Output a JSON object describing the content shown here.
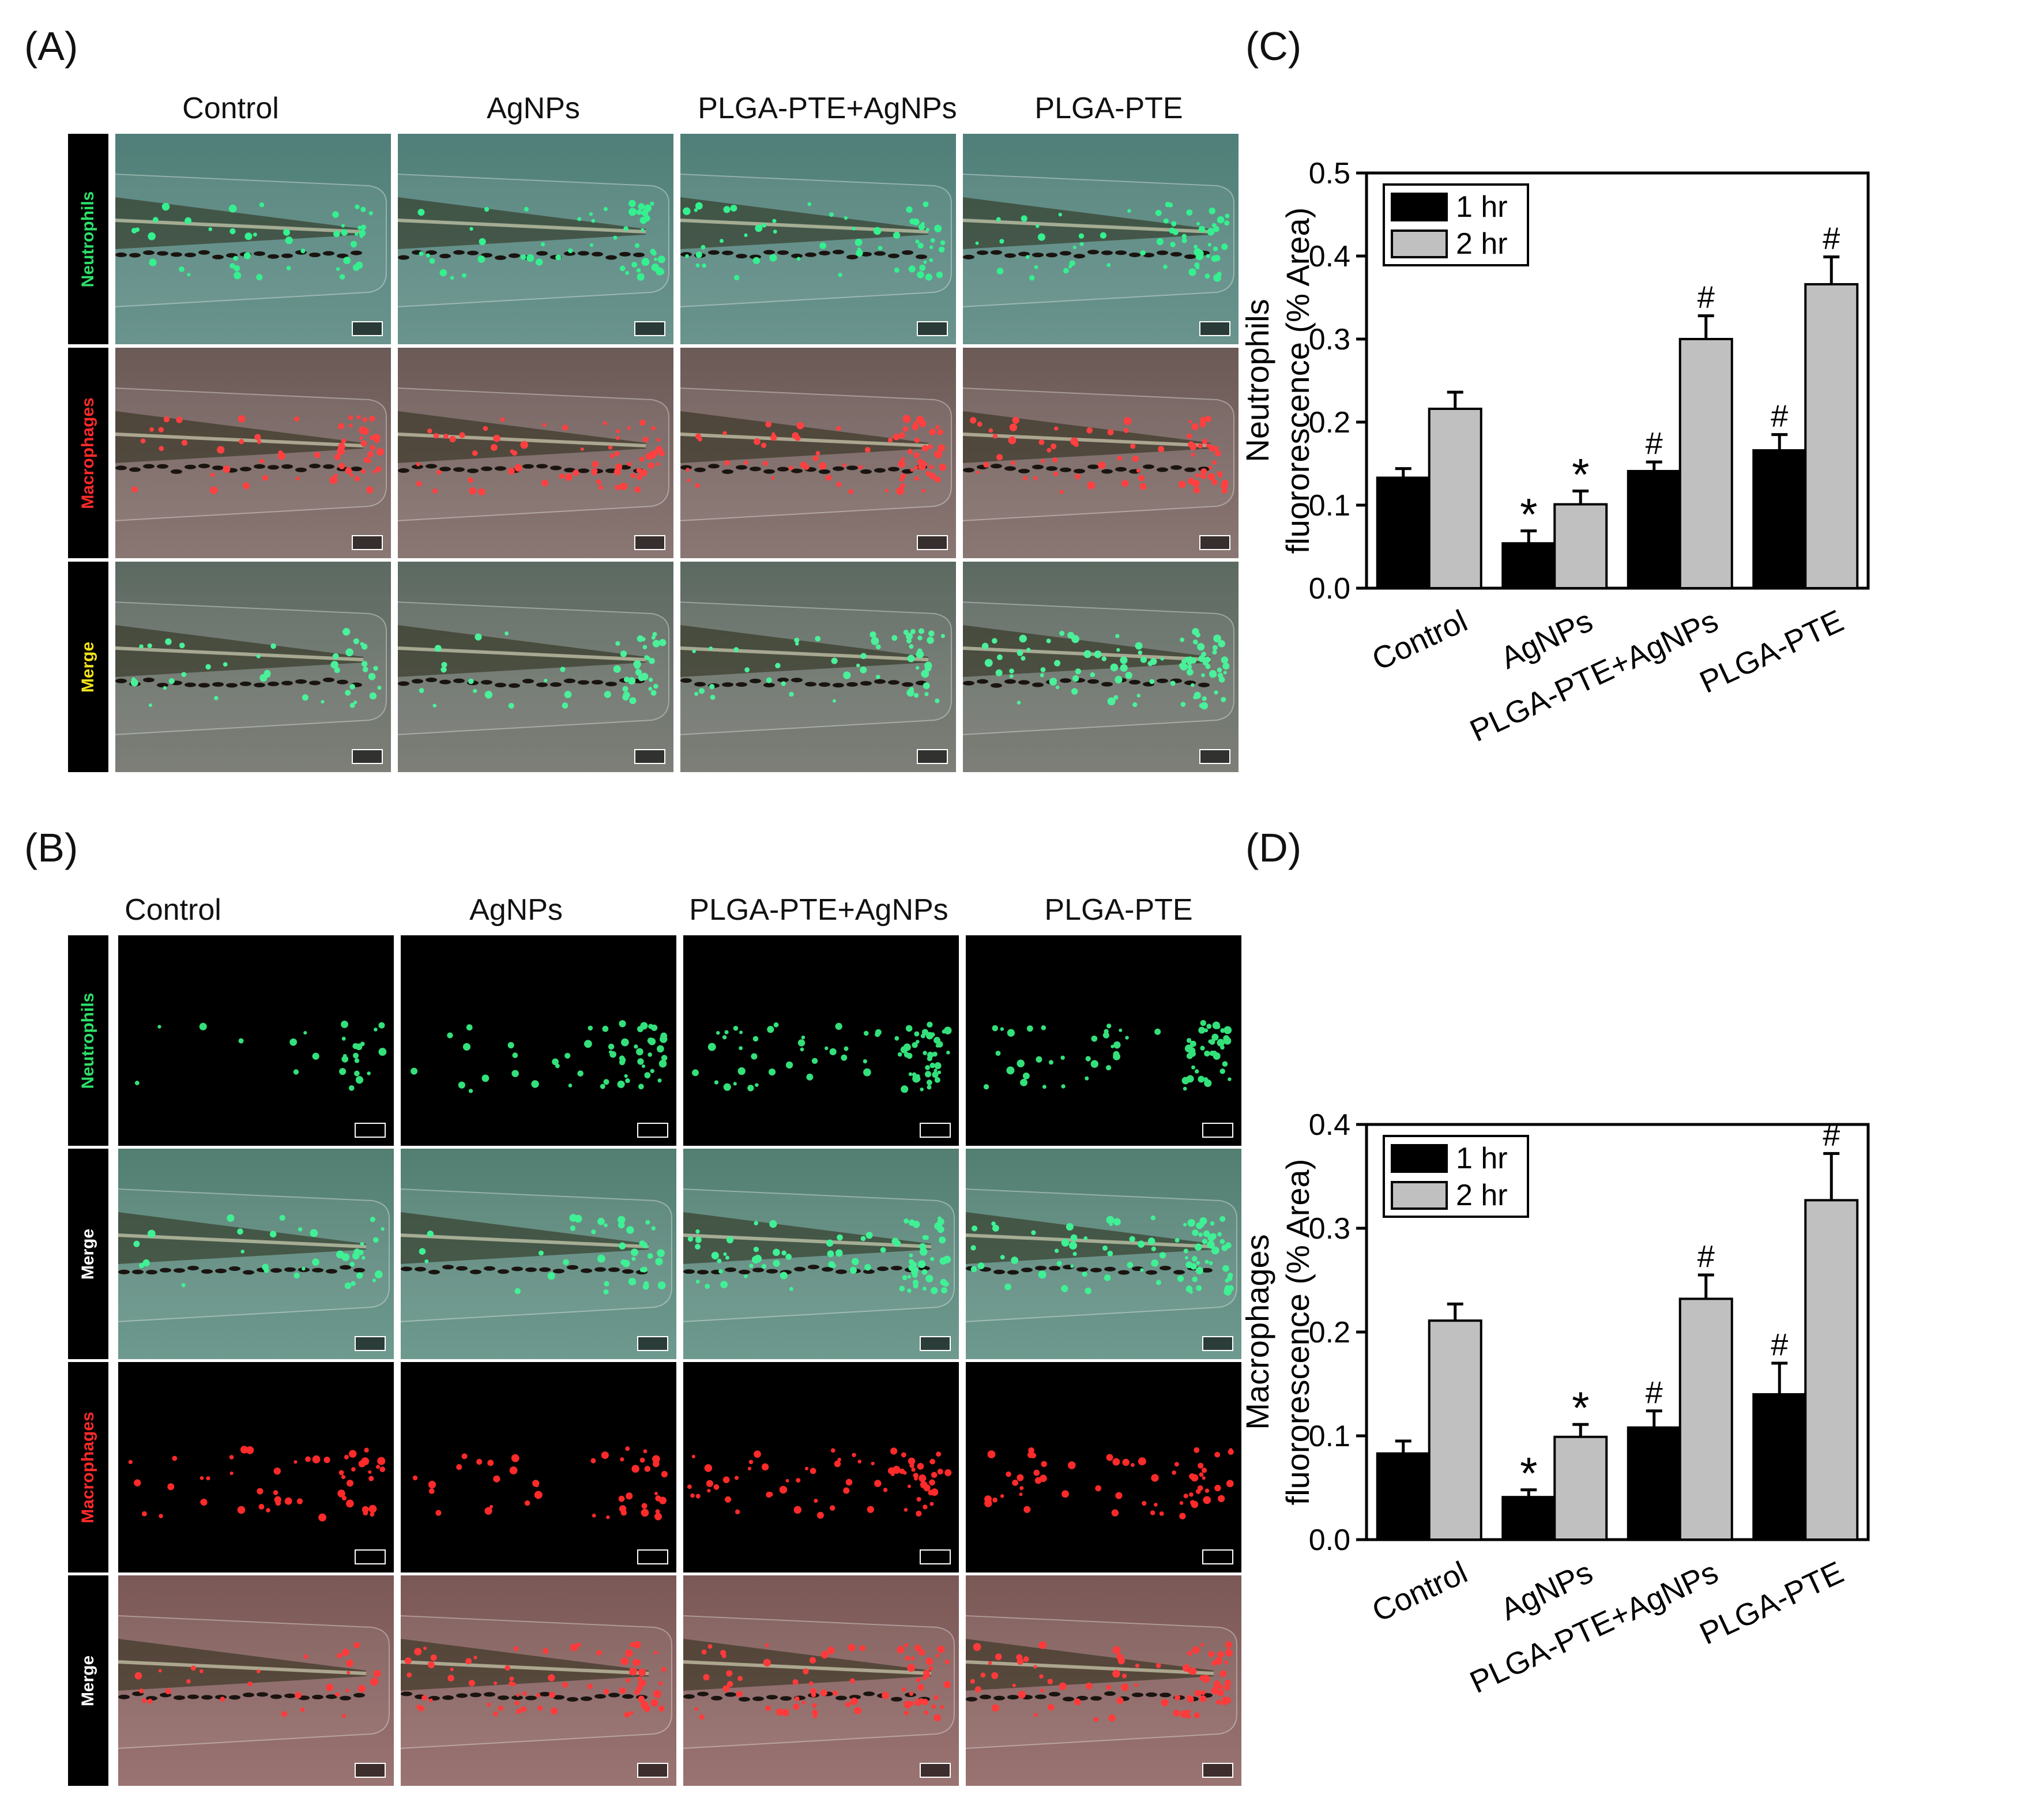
{
  "panels": {
    "A": "(A)",
    "B": "(B)",
    "C": "(C)",
    "D": "(D)"
  },
  "groups": [
    "Control",
    "AgNPs",
    "PLGA-PTE+AgNPs",
    "PLGA-PTE"
  ],
  "panelA_rows": [
    {
      "label": "Neutrophils",
      "color": "#2ee06a"
    },
    {
      "label": "Macrophages",
      "color": "#ff2a2a"
    },
    {
      "label": "Merge",
      "color": "#f2e21b"
    }
  ],
  "panelB_rows": [
    {
      "label": "Neutrophils",
      "color": "#2ee06a"
    },
    {
      "label": "Merge",
      "color": "#ffffff"
    },
    {
      "label": "Macrophages",
      "color": "#ff2a2a"
    },
    {
      "label": "Merge",
      "color": "#ffffff"
    }
  ],
  "chart_data": [
    {
      "type": "bar",
      "panel": "C",
      "categories": [
        "Control",
        "AgNPs",
        "PLGA-PTE+AgNPs",
        "PLGA-PTE"
      ],
      "series": [
        {
          "name": "1 hr",
          "color": "#000000",
          "values": [
            0.133,
            0.054,
            0.141,
            0.166
          ],
          "errors": [
            0.011,
            0.015,
            0.011,
            0.019
          ],
          "annot": [
            "",
            "*",
            "#",
            "#"
          ]
        },
        {
          "name": "2 hr",
          "color": "#c0c0c0",
          "values": [
            0.216,
            0.101,
            0.3,
            0.366
          ],
          "errors": [
            0.02,
            0.016,
            0.028,
            0.033
          ],
          "annot": [
            "",
            "*",
            "#",
            "#"
          ]
        }
      ],
      "ylabel_line1": "Neutrophils",
      "ylabel_line2": "fluororescence (% Area)",
      "ylim": [
        0,
        0.5
      ],
      "yticks": [
        "0.0",
        "0.1",
        "0.2",
        "0.3",
        "0.4",
        "0.5"
      ],
      "legend": "top-left"
    },
    {
      "type": "bar",
      "panel": "D",
      "categories": [
        "Control",
        "AgNPs",
        "PLGA-PTE+AgNPs",
        "PLGA-PTE"
      ],
      "series": [
        {
          "name": "1 hr",
          "color": "#000000",
          "values": [
            0.083,
            0.041,
            0.108,
            0.14
          ],
          "errors": [
            0.012,
            0.007,
            0.016,
            0.03
          ],
          "annot": [
            "",
            "*",
            "#",
            "#"
          ]
        },
        {
          "name": "2 hr",
          "color": "#c0c0c0",
          "values": [
            0.211,
            0.099,
            0.232,
            0.327
          ],
          "errors": [
            0.016,
            0.012,
            0.023,
            0.045
          ],
          "annot": [
            "",
            "*",
            "#",
            "#"
          ]
        }
      ],
      "ylabel_line1": "Macrophages",
      "ylabel_line2": "fluororescence (% Area)",
      "ylim": [
        0,
        0.4
      ],
      "yticks": [
        "0.0",
        "0.1",
        "0.2",
        "0.3",
        "0.4"
      ],
      "legend": "top-left"
    }
  ]
}
